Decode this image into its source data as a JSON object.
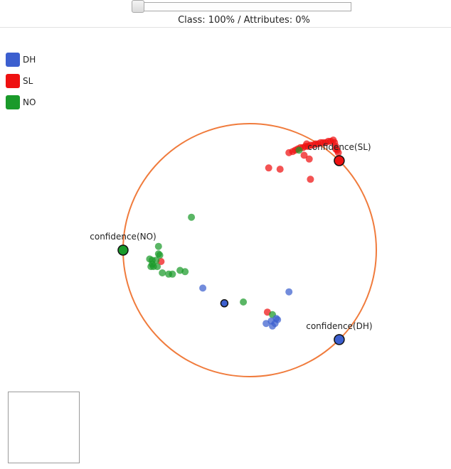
{
  "slider": {
    "caption": "Class: 100% / Attributes: 0%",
    "class_weight_percent": 100,
    "attribute_weight_percent": 0
  },
  "legend": [
    {
      "key": "DH",
      "label": "DH",
      "color": "#3c5fcf"
    },
    {
      "key": "SL",
      "label": "SL",
      "color": "#ee1111"
    },
    {
      "key": "NO",
      "label": "NO",
      "color": "#1a9a2a"
    }
  ],
  "chart_data": {
    "type": "scatter",
    "title": "",
    "layout": "radviz",
    "circle_color": "#f07b3c",
    "anchors": [
      {
        "label": "confidence(SL)",
        "class": "SL",
        "angle_deg": 45
      },
      {
        "label": "confidence(NO)",
        "class": "NO",
        "angle_deg": 180
      },
      {
        "label": "confidence(DH)",
        "class": "DH",
        "angle_deg": -45
      }
    ],
    "x_range": [
      -1,
      1
    ],
    "y_range": [
      -1,
      1
    ],
    "centroid": {
      "x": -0.2,
      "y": -0.42
    },
    "series": [
      {
        "name": "SL",
        "color": "#ee1111",
        "points": [
          [
            0.31,
            0.77
          ],
          [
            0.34,
            0.78
          ],
          [
            0.36,
            0.79
          ],
          [
            0.38,
            0.8
          ],
          [
            0.4,
            0.81
          ],
          [
            0.42,
            0.81
          ],
          [
            0.44,
            0.82
          ],
          [
            0.46,
            0.82
          ],
          [
            0.48,
            0.83
          ],
          [
            0.5,
            0.83
          ],
          [
            0.52,
            0.84
          ],
          [
            0.54,
            0.84
          ],
          [
            0.56,
            0.85
          ],
          [
            0.58,
            0.85
          ],
          [
            0.6,
            0.85
          ],
          [
            0.62,
            0.86
          ],
          [
            0.64,
            0.86
          ],
          [
            0.66,
            0.87
          ],
          [
            0.67,
            0.85
          ],
          [
            0.68,
            0.82
          ],
          [
            0.69,
            0.79
          ],
          [
            0.7,
            0.77
          ],
          [
            0.68,
            0.8
          ],
          [
            0.45,
            0.84
          ],
          [
            0.43,
            0.75
          ],
          [
            0.47,
            0.72
          ],
          [
            0.15,
            0.65
          ],
          [
            0.24,
            0.64
          ],
          [
            0.48,
            0.56
          ],
          [
            0.14,
            -0.49
          ],
          [
            -0.7,
            -0.09
          ]
        ]
      },
      {
        "name": "NO",
        "color": "#1a9a2a",
        "points": [
          [
            0.39,
            0.79
          ],
          [
            -0.46,
            0.26
          ],
          [
            -0.72,
            0.03
          ],
          [
            -0.72,
            -0.03
          ],
          [
            -0.71,
            -0.04
          ],
          [
            -0.79,
            -0.07
          ],
          [
            -0.77,
            -0.08
          ],
          [
            -0.74,
            -0.08
          ],
          [
            -0.77,
            -0.11
          ],
          [
            -0.78,
            -0.13
          ],
          [
            -0.76,
            -0.13
          ],
          [
            -0.73,
            -0.13
          ],
          [
            -0.69,
            -0.18
          ],
          [
            -0.64,
            -0.19
          ],
          [
            -0.61,
            -0.19
          ],
          [
            -0.55,
            -0.16
          ],
          [
            -0.51,
            -0.17
          ],
          [
            -0.05,
            -0.41
          ],
          [
            0.18,
            -0.51
          ]
        ]
      },
      {
        "name": "DH",
        "color": "#3c5fcf",
        "points": [
          [
            -0.37,
            -0.3
          ],
          [
            0.31,
            -0.33
          ],
          [
            0.21,
            -0.54
          ],
          [
            0.17,
            -0.56
          ],
          [
            0.13,
            -0.58
          ],
          [
            0.2,
            -0.58
          ],
          [
            0.18,
            -0.6
          ],
          [
            0.22,
            -0.55
          ]
        ]
      }
    ]
  }
}
